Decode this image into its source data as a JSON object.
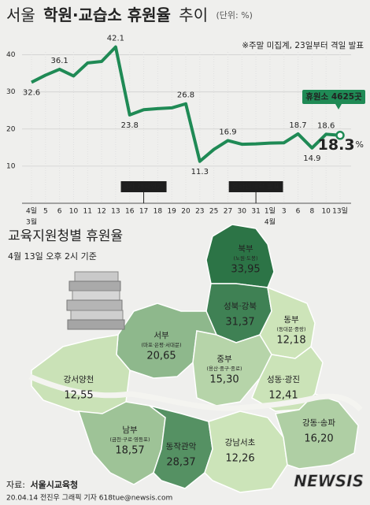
{
  "chart_data": {
    "type": "line",
    "title": [
      "서울",
      "학원·교습소 휴원율",
      "추이"
    ],
    "unit_note": "(단위: %)",
    "note": "※주말 미집계, 23일부터 격일 발표",
    "categories": [
      "4일",
      "5",
      "6",
      "10",
      "11",
      "12",
      "13",
      "16",
      "17",
      "18",
      "19",
      "20",
      "23",
      "25",
      "27",
      "30",
      "31",
      "1일",
      "3",
      "6",
      "8",
      "10",
      "13일"
    ],
    "months": [
      {
        "label": "3월",
        "category": 0
      },
      {
        "label": "4월",
        "category": 17
      }
    ],
    "series": [
      {
        "name": "휴원율",
        "color": "#1f8a55",
        "values": [
          32.6,
          34.5,
          36.1,
          34.3,
          37.8,
          38.2,
          42.1,
          23.8,
          25.2,
          25.5,
          25.7,
          26.8,
          11.3,
          14.5,
          16.9,
          15.9,
          16.0,
          16.2,
          16.3,
          18.7,
          14.9,
          18.6,
          18.3
        ],
        "value_labels": [
          "32.6",
          null,
          "36.1",
          null,
          null,
          null,
          "42.1",
          "23.8",
          null,
          null,
          null,
          "26.8",
          "11.3",
          null,
          "16.9",
          null,
          null,
          null,
          null,
          "18.7",
          "14.9",
          "18.6",
          "18.3"
        ]
      }
    ],
    "last_unit": "%",
    "callout": "휴원소 4625곳",
    "events": [
      {
        "label": "3차 개학연기",
        "category": 8
      },
      {
        "label": "온라인개학 발표",
        "category": 16
      }
    ],
    "ylim": [
      0,
      45
    ],
    "yticks": [
      10,
      20,
      30,
      40
    ],
    "grid": true
  },
  "map": {
    "title": "교육지원청별 휴원율",
    "subtitle": "4월 13일 오후 2시 기준",
    "regions": [
      {
        "name": "북부",
        "sub": "(노원·도봉)",
        "value": 33.95,
        "label": "33,95"
      },
      {
        "name": "성북·강북",
        "value": 31.37,
        "label": "31,37"
      },
      {
        "name": "동부",
        "sub": "(동대문·중랑)",
        "value": 12.18,
        "label": "12,18"
      },
      {
        "name": "서부",
        "sub": "(마포·은평·서대문)",
        "value": 20.65,
        "label": "20,65"
      },
      {
        "name": "중부",
        "sub": "(용산·중구·종로)",
        "value": 15.3,
        "label": "15,30"
      },
      {
        "name": "강서양천",
        "value": 12.55,
        "label": "12,55"
      },
      {
        "name": "성동·광진",
        "value": 12.41,
        "label": "12,41"
      },
      {
        "name": "남부",
        "sub": "(금천·구로·영등포)",
        "value": 18.57,
        "label": "18,57"
      },
      {
        "name": "동작관악",
        "value": 28.37,
        "label": "28,37"
      },
      {
        "name": "강남서초",
        "value": 12.26,
        "label": "12,26"
      },
      {
        "name": "강동·송파",
        "value": 16.2,
        "label": "16,20"
      }
    ]
  },
  "footer": {
    "source_label": "자료:",
    "source": "서울시교육청",
    "credit": "20.04.14 전진우 그래픽 기자 618tue@newsis.com",
    "logo": "NEWSIS"
  }
}
